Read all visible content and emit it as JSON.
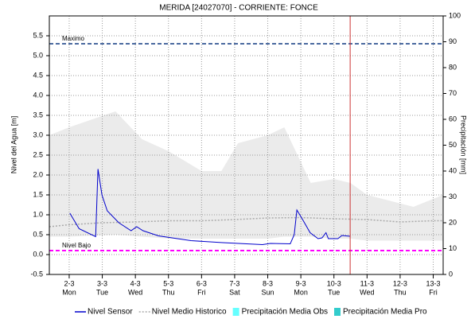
{
  "chart_data": {
    "type": "line",
    "title": "MERIDA    [24027070] - CORRIENTE: FONCE",
    "ylabel": "Nivel del Agua [m]",
    "y2label": "Precipitación [mm]",
    "xlim": [
      1.4,
      13.3
    ],
    "xticks": [
      {
        "value": 2,
        "label": "2-3"
      },
      {
        "value": 3,
        "label": "3-3"
      },
      {
        "value": 4,
        "label": "4-3"
      },
      {
        "value": 5,
        "label": "5-3"
      },
      {
        "value": 6,
        "label": "6-3"
      },
      {
        "value": 7,
        "label": "7-3"
      },
      {
        "value": 8,
        "label": "8-3"
      },
      {
        "value": 9,
        "label": "9-3"
      },
      {
        "value": 10,
        "label": "10-3"
      },
      {
        "value": 11,
        "label": "11-3"
      },
      {
        "value": 12,
        "label": "12-3"
      },
      {
        "value": 13,
        "label": "13-3"
      }
    ],
    "xtick_weekdays": [
      "Mon",
      "Tue",
      "Wed",
      "Thu",
      "Fri",
      "Sat",
      "Sun",
      "Mon",
      "Tue",
      "Wed",
      "Thu",
      "Fri"
    ],
    "ylim": [
      -0.5,
      6.0
    ],
    "yticks": [
      -0.5,
      {
        "value": 0,
        "label": "0.0"
      },
      0.5,
      {
        "value": 1,
        "label": "1.0"
      },
      1.5,
      {
        "value": 2,
        "label": "2.0"
      },
      2.5,
      {
        "value": 3,
        "label": "3.0"
      },
      3.5,
      {
        "value": 4,
        "label": "4.0"
      },
      4.5,
      {
        "value": 5,
        "label": "5.0"
      },
      5.5
    ],
    "y2lim": [
      0,
      100
    ],
    "y2ticks": [
      0,
      10,
      20,
      30,
      40,
      50,
      60,
      70,
      80,
      90,
      100
    ],
    "grid": true,
    "band": {
      "color": "#ebebeb",
      "x": [
        1.4,
        2.0,
        3.4,
        4.2,
        5.0,
        6.0,
        6.6,
        7.1,
        8.0,
        8.5,
        9.3,
        10.0,
        10.5,
        11.0,
        12.4,
        13.3
      ],
      "upper": [
        3.0,
        3.2,
        3.6,
        2.9,
        2.6,
        2.1,
        2.1,
        2.8,
        3.0,
        3.2,
        1.8,
        1.9,
        1.8,
        1.5,
        1.2,
        1.5
      ],
      "lower": [
        0.45,
        0.45,
        0.5,
        0.45,
        0.4,
        0.4,
        0.4,
        0.4,
        0.4,
        0.45,
        0.45,
        0.4,
        0.4,
        0.35,
        0.35,
        0.35
      ]
    },
    "series": [
      {
        "name": "Nivel Sensor",
        "color": "#0000cc",
        "style": "solid",
        "x": [
          2.02,
          2.3,
          2.8,
          2.87,
          2.99,
          3.15,
          3.5,
          3.87,
          4.04,
          4.23,
          4.7,
          5.68,
          6.64,
          7.84,
          8.08,
          8.68,
          8.8,
          8.88,
          9.04,
          9.28,
          9.52,
          9.64,
          9.76,
          9.83,
          10.12,
          10.24,
          10.49
        ],
        "values": [
          1.04,
          0.65,
          0.45,
          2.15,
          1.5,
          1.1,
          0.8,
          0.6,
          0.7,
          0.6,
          0.47,
          0.35,
          0.3,
          0.25,
          0.28,
          0.27,
          0.5,
          1.12,
          0.9,
          0.55,
          0.4,
          0.42,
          0.55,
          0.4,
          0.4,
          0.48,
          0.46
        ]
      },
      {
        "name": "Nivel Medio Historico",
        "color": "#aaaaaa",
        "style": "dotted",
        "x": [
          1.4,
          2,
          3,
          4,
          5,
          6,
          7,
          8,
          9,
          10,
          11,
          12,
          13,
          13.3
        ],
        "values": [
          0.7,
          0.75,
          0.8,
          0.82,
          0.85,
          0.85,
          0.88,
          0.92,
          0.93,
          0.9,
          0.88,
          0.82,
          0.85,
          0.85
        ]
      },
      {
        "name": "Precipitación Media Obs",
        "color": "#66ffff",
        "style": "bar",
        "axis": "y2",
        "x": [],
        "values": []
      },
      {
        "name": "Precipitación Media Pro",
        "color": "#33cccc",
        "style": "bar",
        "axis": "y2",
        "x": [],
        "values": []
      }
    ],
    "reference_lines": [
      {
        "label": "Maximo",
        "value": 5.3,
        "color": "#4a6aa0"
      },
      {
        "label": "Nivel Bajo",
        "value": 0.1,
        "color": "#ff00ff"
      }
    ],
    "now_line": {
      "x": 10.49,
      "color": "#cc3333"
    }
  }
}
